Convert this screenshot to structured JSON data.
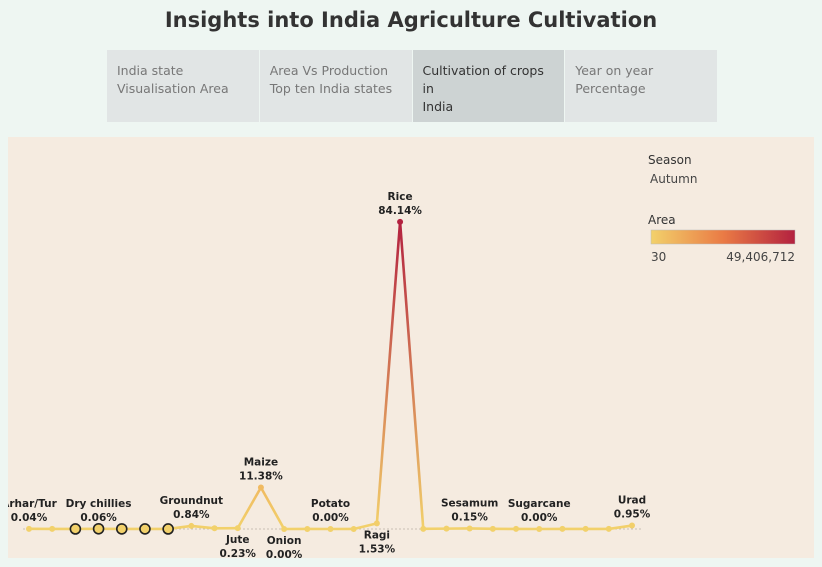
{
  "title": "Insights into India Agriculture Cultivation",
  "tabs": [
    {
      "label_line1": "India state",
      "label_line2": "Visualisation Area"
    },
    {
      "label_line1": "Area Vs Production",
      "label_line2": "Top ten India states"
    },
    {
      "label_line1": "Cultivation of crops in",
      "label_line2": "India"
    },
    {
      "label_line1": "Year on year",
      "label_line2": "Percentage"
    }
  ],
  "legend": {
    "season_title": "Season",
    "season_value": "Autumn",
    "area_title": "Area",
    "area_min": "30",
    "area_max": "49,406,712",
    "color_low": "#f2d16b",
    "color_mid": "#ea7b45",
    "color_high": "#b3213f"
  },
  "chart_data": {
    "type": "line",
    "ylim": [
      0,
      100
    ],
    "points": [
      {
        "value": 0.04,
        "label_name": "Arhar/Tur",
        "label_pct": "0.04%",
        "label_pos": "above",
        "ring": false
      },
      {
        "value": 0.02,
        "ring": false
      },
      {
        "value": 0.01,
        "ring": true
      },
      {
        "value": 0.06,
        "label_name": "Dry chillies",
        "label_pct": "0.06%",
        "label_pos": "above",
        "ring": true
      },
      {
        "value": 0.03,
        "ring": true
      },
      {
        "value": 0.02,
        "ring": true
      },
      {
        "value": 0.01,
        "ring": true
      },
      {
        "value": 0.84,
        "label_name": "Groundnut",
        "label_pct": "0.84%",
        "label_pos": "above",
        "ring": false
      },
      {
        "value": 0.2,
        "ring": false
      },
      {
        "value": 0.23,
        "label_name": "Jute",
        "label_pct": "0.23%",
        "label_pos": "below",
        "ring": false
      },
      {
        "value": 11.38,
        "label_name": "Maize",
        "label_pct": "11.38%",
        "label_pos": "above",
        "ring": false
      },
      {
        "value": 0.0,
        "label_name": "Onion",
        "label_pct": "0.00%",
        "label_pos": "below",
        "ring": false
      },
      {
        "value": 0.01,
        "ring": false
      },
      {
        "value": 0.0,
        "label_name": "Potato",
        "label_pct": "0.00%",
        "label_pos": "above",
        "ring": false
      },
      {
        "value": 0.01,
        "ring": false
      },
      {
        "value": 1.53,
        "label_name": "Ragi",
        "label_pct": "1.53%",
        "label_pos": "below",
        "ring": false
      },
      {
        "value": 84.14,
        "label_name": "Rice",
        "label_pct": "84.14%",
        "label_pos": "above",
        "ring": false
      },
      {
        "value": 0.05,
        "ring": false
      },
      {
        "value": 0.1,
        "ring": false
      },
      {
        "value": 0.15,
        "label_name": "Sesamum",
        "label_pct": "0.15%",
        "label_pos": "above",
        "ring": false
      },
      {
        "value": 0.05,
        "ring": false
      },
      {
        "value": 0.02,
        "ring": false
      },
      {
        "value": 0.0,
        "label_name": "Sugarcane",
        "label_pct": "0.00%",
        "label_pos": "above",
        "ring": false
      },
      {
        "value": 0.02,
        "ring": false
      },
      {
        "value": 0.03,
        "ring": false
      },
      {
        "value": 0.02,
        "ring": false
      },
      {
        "value": 0.95,
        "label_name": "Urad",
        "label_pct": "0.95%",
        "label_pos": "above",
        "ring": false
      }
    ]
  }
}
